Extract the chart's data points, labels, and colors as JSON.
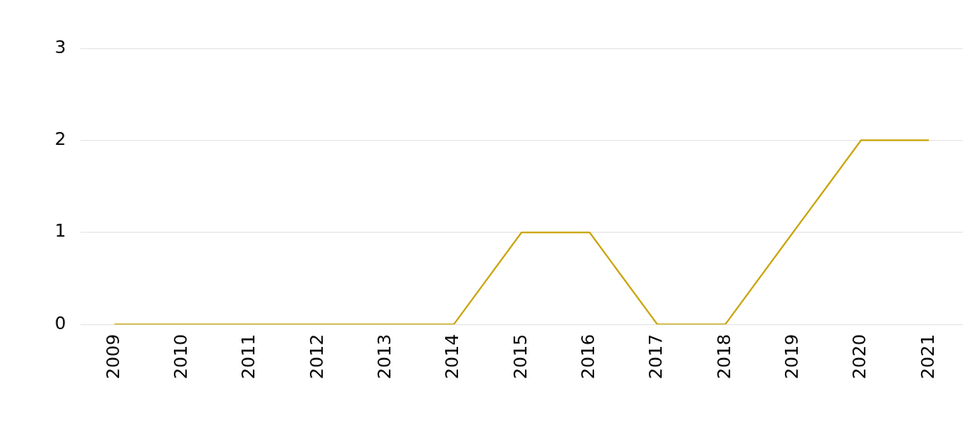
{
  "chart_data": {
    "type": "line",
    "categories": [
      "2009",
      "2010",
      "2011",
      "2012",
      "2013",
      "2014",
      "2015",
      "2016",
      "2017",
      "2018",
      "2019",
      "2020",
      "2021"
    ],
    "series": [
      {
        "color": "#c8a200",
        "values": [
          0,
          0,
          0,
          0,
          0,
          0,
          1,
          1,
          0,
          0,
          1,
          2,
          2
        ]
      }
    ],
    "ylim": [
      0,
      3
    ],
    "yticks": [
      0,
      1,
      2,
      3
    ],
    "grid": "y",
    "legend": false,
    "marker": "none",
    "line_style": "solid"
  }
}
